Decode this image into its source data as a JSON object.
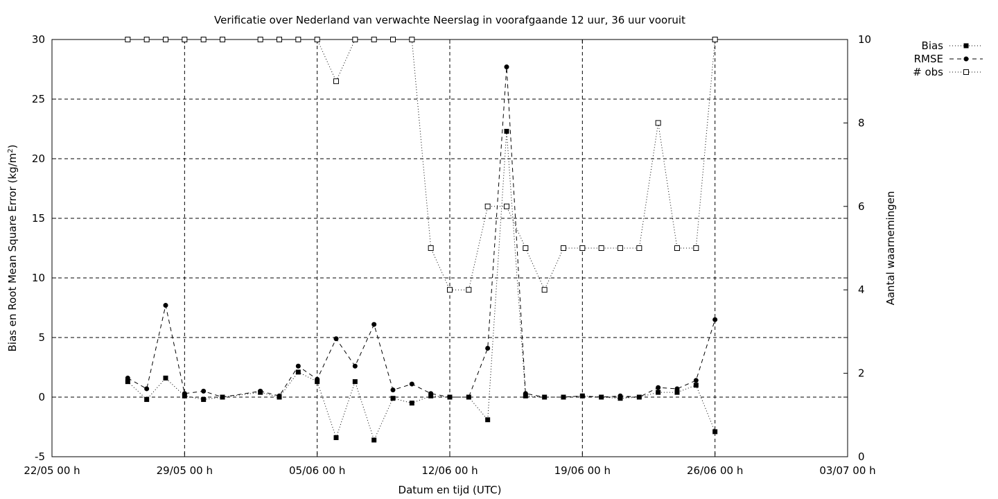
{
  "chart_data": {
    "type": "line",
    "title": "Verificatie over Nederland van verwachte Neerslag in voorafgaande 12 uur, 36 uur vooruit",
    "xlabel": "Datum en tijd (UTC)",
    "ylabel": "Bias en Root Mean Square Error (kg/m²)",
    "y2label": "Aantal waarnemingen",
    "x_ticks": [
      "22/05 00 h",
      "29/05 00 h",
      "05/06 00 h",
      "12/06 00 h",
      "19/06 00 h",
      "26/06 00 h",
      "03/07 00 h"
    ],
    "x_range_days": [
      0,
      42
    ],
    "x_range_dates": [
      "22/05 00 h",
      "03/07 00 h"
    ],
    "x_unit": "days since 22/05 00 h",
    "ylim": [
      -5,
      30
    ],
    "y_ticks": [
      -5,
      0,
      5,
      10,
      15,
      20,
      25,
      30
    ],
    "y2lim": [
      0,
      10
    ],
    "y2_ticks": [
      0,
      2,
      4,
      6,
      8,
      10
    ],
    "grid": true,
    "legend_position": "top-right outside",
    "series": [
      {
        "name": "Bias",
        "axis": "left",
        "style": "dotted",
        "marker": "filled-square",
        "points": [
          [
            4,
            1.3
          ],
          [
            5,
            -0.2
          ],
          [
            6,
            1.6
          ],
          [
            7,
            0.1
          ],
          [
            8,
            -0.2
          ],
          [
            9,
            0.0
          ],
          [
            11,
            0.4
          ],
          [
            12,
            0.0
          ],
          [
            13,
            2.1
          ],
          [
            14,
            1.3
          ],
          [
            15,
            -3.4
          ],
          [
            16,
            1.3
          ],
          [
            17,
            -3.6
          ],
          [
            18,
            -0.1
          ],
          [
            19,
            -0.5
          ],
          [
            20,
            0.1
          ],
          [
            21,
            0.0
          ],
          [
            22,
            0.0
          ],
          [
            23,
            -1.9
          ],
          [
            24,
            22.3
          ],
          [
            25,
            0.1
          ],
          [
            26,
            0.0
          ],
          [
            27,
            0.0
          ],
          [
            28,
            0.1
          ],
          [
            29,
            0.0
          ],
          [
            30,
            -0.1
          ],
          [
            31,
            0.0
          ],
          [
            32,
            0.4
          ],
          [
            33,
            0.4
          ],
          [
            34,
            1.0
          ],
          [
            35,
            -2.9
          ]
        ]
      },
      {
        "name": "RMSE",
        "axis": "left",
        "style": "dashed",
        "marker": "filled-circle",
        "points": [
          [
            4,
            1.6
          ],
          [
            5,
            0.7
          ],
          [
            6,
            7.7
          ],
          [
            7,
            0.3
          ],
          [
            8,
            0.5
          ],
          [
            9,
            0.0
          ],
          [
            11,
            0.5
          ],
          [
            12,
            0.1
          ],
          [
            13,
            2.6
          ],
          [
            14,
            1.5
          ],
          [
            15,
            4.9
          ],
          [
            16,
            2.6
          ],
          [
            17,
            6.1
          ],
          [
            18,
            0.6
          ],
          [
            19,
            1.1
          ],
          [
            20,
            0.3
          ],
          [
            21,
            0.0
          ],
          [
            22,
            0.0
          ],
          [
            23,
            4.1
          ],
          [
            24,
            27.7
          ],
          [
            25,
            0.3
          ],
          [
            26,
            0.0
          ],
          [
            27,
            0.0
          ],
          [
            28,
            0.1
          ],
          [
            29,
            0.0
          ],
          [
            30,
            0.1
          ],
          [
            31,
            0.0
          ],
          [
            32,
            0.8
          ],
          [
            33,
            0.7
          ],
          [
            34,
            1.4
          ],
          [
            35,
            6.5
          ]
        ]
      },
      {
        "name": "# obs",
        "axis": "right",
        "style": "dotted",
        "marker": "open-square",
        "points": [
          [
            4,
            10
          ],
          [
            5,
            10
          ],
          [
            6,
            10
          ],
          [
            7,
            10
          ],
          [
            8,
            10
          ],
          [
            9,
            10
          ],
          [
            11,
            10
          ],
          [
            12,
            10
          ],
          [
            13,
            10
          ],
          [
            14,
            10
          ],
          [
            15,
            9
          ],
          [
            16,
            10
          ],
          [
            17,
            10
          ],
          [
            18,
            10
          ],
          [
            19,
            10
          ],
          [
            20,
            5
          ],
          [
            21,
            4
          ],
          [
            22,
            4
          ],
          [
            23,
            6
          ],
          [
            24,
            6
          ],
          [
            25,
            5
          ],
          [
            26,
            4
          ],
          [
            27,
            5
          ],
          [
            28,
            5
          ],
          [
            29,
            5
          ],
          [
            30,
            5
          ],
          [
            31,
            5
          ],
          [
            32,
            8
          ],
          [
            33,
            5
          ],
          [
            34,
            5
          ],
          [
            35,
            10
          ]
        ]
      }
    ]
  }
}
